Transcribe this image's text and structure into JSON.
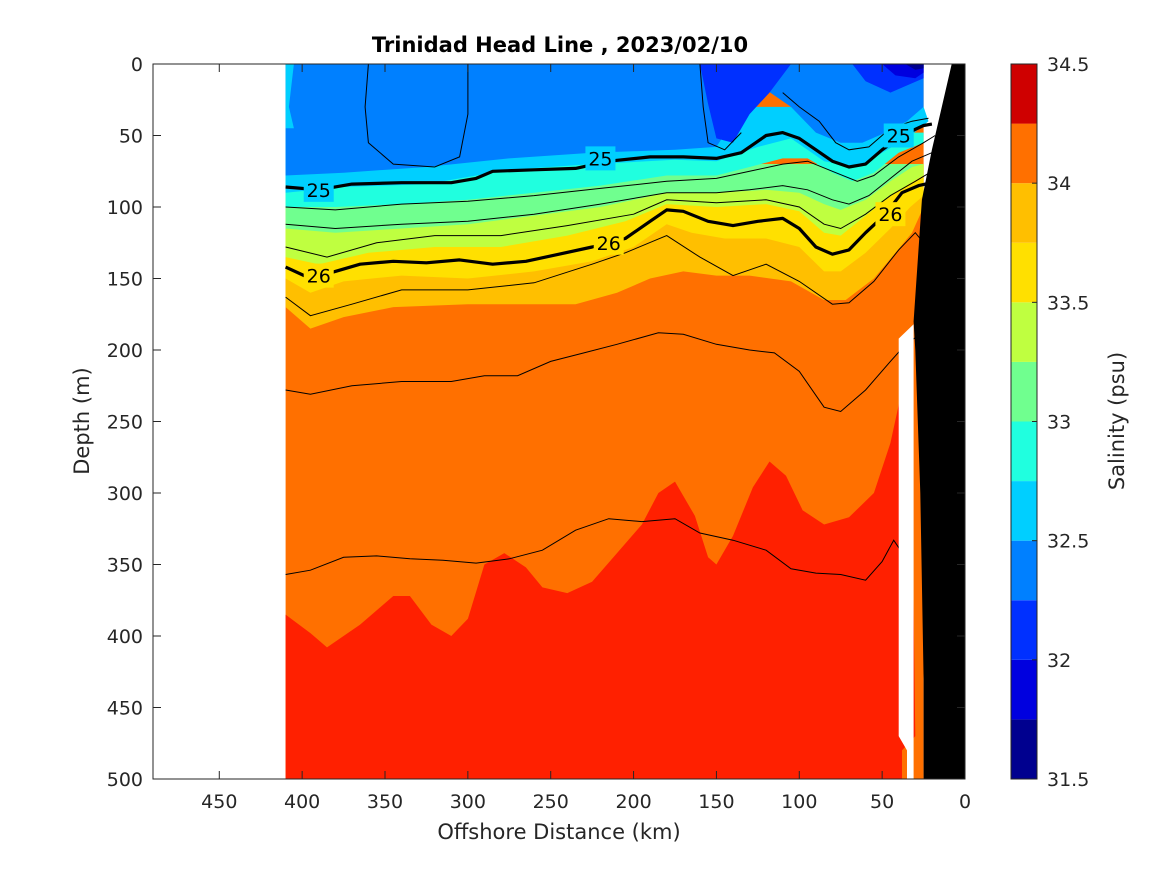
{
  "chart_data": {
    "type": "heatmap",
    "title": "Trinidad Head Line , 2023/02/10",
    "xlabel": "Offshore Distance (km)",
    "ylabel": "Depth (m)",
    "xlim": [
      490,
      0
    ],
    "ylim": [
      0,
      500
    ],
    "x_reversed": true,
    "y_reversed": true,
    "xticks": [
      450,
      400,
      350,
      300,
      250,
      200,
      150,
      100,
      50,
      0
    ],
    "yticks": [
      0,
      50,
      100,
      150,
      200,
      250,
      300,
      350,
      400,
      450,
      500
    ],
    "data_start_km": 410,
    "colorbar": {
      "label": "Salinity (psu)",
      "range": [
        31.5,
        34.5
      ],
      "ticks": [
        31.5,
        32,
        32.5,
        33,
        33.5,
        34,
        34.5
      ],
      "levels": [
        31.5,
        31.75,
        32.0,
        32.25,
        32.5,
        32.75,
        33.0,
        33.25,
        33.5,
        33.75,
        34.0,
        34.25,
        34.5
      ],
      "colors": [
        "#00008f",
        "#0000df",
        "#0030ff",
        "#0080ff",
        "#00cfff",
        "#20ffdf",
        "#70ff8f",
        "#bfff40",
        "#ffe000",
        "#ffbf00",
        "#ff7000",
        "#ff2000",
        "#cf0000"
      ]
    },
    "salinity_bands": [
      {
        "level": 32.25,
        "color": "#0030ff",
        "top": [
          [
            0,
            0
          ],
          [
            0,
            0
          ]
        ],
        "bottom": [
          [
            160,
            0
          ],
          [
            155,
            28
          ],
          [
            150,
            52
          ],
          [
            140,
            55
          ],
          [
            130,
            35
          ],
          [
            118,
            20
          ],
          [
            105,
            0
          ],
          [
            160,
            0
          ]
        ]
      },
      {
        "level": 32.5,
        "color": "#0080ff",
        "polygon_km_depth": [
          [
            410,
            0
          ],
          [
            25,
            0
          ],
          [
            25,
            30
          ],
          [
            35,
            40
          ],
          [
            48,
            48
          ],
          [
            62,
            55
          ],
          [
            75,
            55
          ],
          [
            90,
            48
          ],
          [
            105,
            30
          ],
          [
            120,
            18
          ],
          [
            140,
            40
          ],
          [
            150,
            58
          ],
          [
            175,
            60
          ],
          [
            225,
            62
          ],
          [
            275,
            66
          ],
          [
            325,
            72
          ],
          [
            375,
            76
          ],
          [
            410,
            78
          ]
        ]
      },
      {
        "level": 32.75,
        "color": "#00cfff",
        "polygon_km_depth": [
          [
            410,
            78
          ],
          [
            375,
            76
          ],
          [
            325,
            72
          ],
          [
            275,
            66
          ],
          [
            225,
            62
          ],
          [
            175,
            60
          ],
          [
            150,
            58
          ],
          [
            130,
            55
          ],
          [
            110,
            45
          ],
          [
            90,
            55
          ],
          [
            75,
            62
          ],
          [
            60,
            60
          ],
          [
            48,
            50
          ],
          [
            35,
            40
          ],
          [
            25,
            30
          ],
          [
            22,
            40
          ],
          [
            35,
            52
          ],
          [
            50,
            62
          ],
          [
            65,
            72
          ],
          [
            85,
            68
          ],
          [
            105,
            52
          ],
          [
            125,
            58
          ],
          [
            150,
            68
          ],
          [
            175,
            67
          ],
          [
            225,
            70
          ],
          [
            275,
            74
          ],
          [
            325,
            84
          ],
          [
            375,
            86
          ],
          [
            410,
            90
          ]
        ]
      }
    ],
    "density_contours": [
      {
        "label": "25",
        "points_km_depth": [
          [
            410,
            86
          ],
          [
            390,
            88
          ],
          [
            370,
            84
          ],
          [
            340,
            83
          ],
          [
            310,
            83
          ],
          [
            295,
            80
          ],
          [
            285,
            75
          ],
          [
            260,
            74
          ],
          [
            235,
            73
          ],
          [
            215,
            68
          ],
          [
            190,
            65
          ],
          [
            170,
            65
          ],
          [
            150,
            66
          ],
          [
            135,
            62
          ],
          [
            120,
            50
          ],
          [
            110,
            48
          ],
          [
            100,
            52
          ],
          [
            90,
            60
          ],
          [
            80,
            68
          ],
          [
            70,
            72
          ],
          [
            60,
            70
          ],
          [
            50,
            60
          ],
          [
            38,
            50
          ],
          [
            25,
            43
          ],
          [
            20,
            42
          ]
        ]
      },
      {
        "label": "26",
        "points_km_depth": [
          [
            410,
            142
          ],
          [
            395,
            150
          ],
          [
            380,
            145
          ],
          [
            365,
            140
          ],
          [
            345,
            138
          ],
          [
            325,
            139
          ],
          [
            305,
            137
          ],
          [
            285,
            140
          ],
          [
            265,
            138
          ],
          [
            245,
            133
          ],
          [
            225,
            128
          ],
          [
            205,
            122
          ],
          [
            190,
            110
          ],
          [
            180,
            102
          ],
          [
            170,
            103
          ],
          [
            155,
            110
          ],
          [
            140,
            113
          ],
          [
            125,
            110
          ],
          [
            110,
            108
          ],
          [
            100,
            115
          ],
          [
            90,
            128
          ],
          [
            80,
            133
          ],
          [
            70,
            130
          ],
          [
            60,
            118
          ],
          [
            48,
            105
          ],
          [
            38,
            90
          ],
          [
            28,
            85
          ],
          [
            20,
            83
          ]
        ]
      }
    ],
    "thin_contours": [
      {
        "points_km_depth": [
          [
            410,
            100
          ],
          [
            380,
            102
          ],
          [
            340,
            98
          ],
          [
            300,
            96
          ],
          [
            260,
            92
          ],
          [
            220,
            87
          ],
          [
            180,
            82
          ],
          [
            150,
            80
          ],
          [
            130,
            75
          ],
          [
            110,
            70
          ],
          [
            95,
            68
          ],
          [
            80,
            75
          ],
          [
            65,
            82
          ],
          [
            55,
            78
          ],
          [
            40,
            65
          ],
          [
            25,
            55
          ],
          [
            18,
            50
          ]
        ]
      },
      {
        "points_km_depth": [
          [
            410,
            112
          ],
          [
            380,
            115
          ],
          [
            340,
            112
          ],
          [
            300,
            110
          ],
          [
            260,
            105
          ],
          [
            220,
            98
          ],
          [
            180,
            90
          ],
          [
            150,
            90
          ],
          [
            130,
            88
          ],
          [
            110,
            85
          ],
          [
            95,
            88
          ],
          [
            80,
            95
          ],
          [
            70,
            98
          ],
          [
            58,
            92
          ],
          [
            45,
            80
          ],
          [
            32,
            68
          ],
          [
            20,
            62
          ]
        ]
      },
      {
        "points_km_depth": [
          [
            410,
            128
          ],
          [
            385,
            135
          ],
          [
            355,
            125
          ],
          [
            320,
            120
          ],
          [
            280,
            120
          ],
          [
            240,
            113
          ],
          [
            200,
            105
          ],
          [
            180,
            95
          ],
          [
            150,
            97
          ],
          [
            120,
            95
          ],
          [
            100,
            100
          ],
          [
            85,
            112
          ],
          [
            75,
            115
          ],
          [
            60,
            105
          ],
          [
            45,
            92
          ],
          [
            30,
            82
          ],
          [
            20,
            75
          ]
        ]
      },
      {
        "points_km_depth": [
          [
            410,
            163
          ],
          [
            395,
            176
          ],
          [
            370,
            168
          ],
          [
            340,
            158
          ],
          [
            300,
            158
          ],
          [
            260,
            153
          ],
          [
            225,
            140
          ],
          [
            205,
            132
          ],
          [
            180,
            120
          ],
          [
            160,
            135
          ],
          [
            140,
            148
          ],
          [
            120,
            140
          ],
          [
            100,
            152
          ],
          [
            80,
            168
          ],
          [
            70,
            167
          ],
          [
            55,
            152
          ],
          [
            40,
            130
          ],
          [
            30,
            118
          ],
          [
            20,
            132
          ]
        ]
      },
      {
        "points_km_depth": [
          [
            410,
            228
          ],
          [
            395,
            231
          ],
          [
            370,
            225
          ],
          [
            340,
            222
          ],
          [
            310,
            222
          ],
          [
            290,
            218
          ],
          [
            270,
            218
          ],
          [
            250,
            208
          ],
          [
            230,
            202
          ],
          [
            210,
            196
          ],
          [
            185,
            188
          ],
          [
            170,
            189
          ],
          [
            150,
            196
          ],
          [
            130,
            200
          ],
          [
            115,
            202
          ],
          [
            100,
            215
          ],
          [
            85,
            240
          ],
          [
            75,
            243
          ],
          [
            60,
            228
          ],
          [
            45,
            208
          ],
          [
            35,
            195
          ],
          [
            28,
            190
          ]
        ]
      },
      {
        "points_km_depth": [
          [
            410,
            357
          ],
          [
            395,
            354
          ],
          [
            375,
            345
          ],
          [
            355,
            344
          ],
          [
            335,
            346
          ],
          [
            315,
            347
          ],
          [
            295,
            349
          ],
          [
            275,
            346
          ],
          [
            255,
            340
          ],
          [
            235,
            326
          ],
          [
            215,
            318
          ],
          [
            195,
            320
          ],
          [
            175,
            318
          ],
          [
            160,
            328
          ],
          [
            140,
            333
          ],
          [
            120,
            340
          ],
          [
            105,
            353
          ],
          [
            90,
            356
          ],
          [
            75,
            357
          ],
          [
            60,
            361
          ],
          [
            50,
            348
          ],
          [
            43,
            333
          ],
          [
            36,
            345
          ],
          [
            32,
            372
          ]
        ]
      }
    ],
    "bathymetry_km_depth": [
      [
        0,
        0
      ],
      [
        0,
        500
      ],
      [
        25,
        500
      ],
      [
        25,
        430
      ],
      [
        27,
        300
      ],
      [
        30,
        200
      ],
      [
        31,
        180
      ],
      [
        26,
        95
      ],
      [
        20,
        60
      ],
      [
        8,
        0
      ]
    ]
  }
}
